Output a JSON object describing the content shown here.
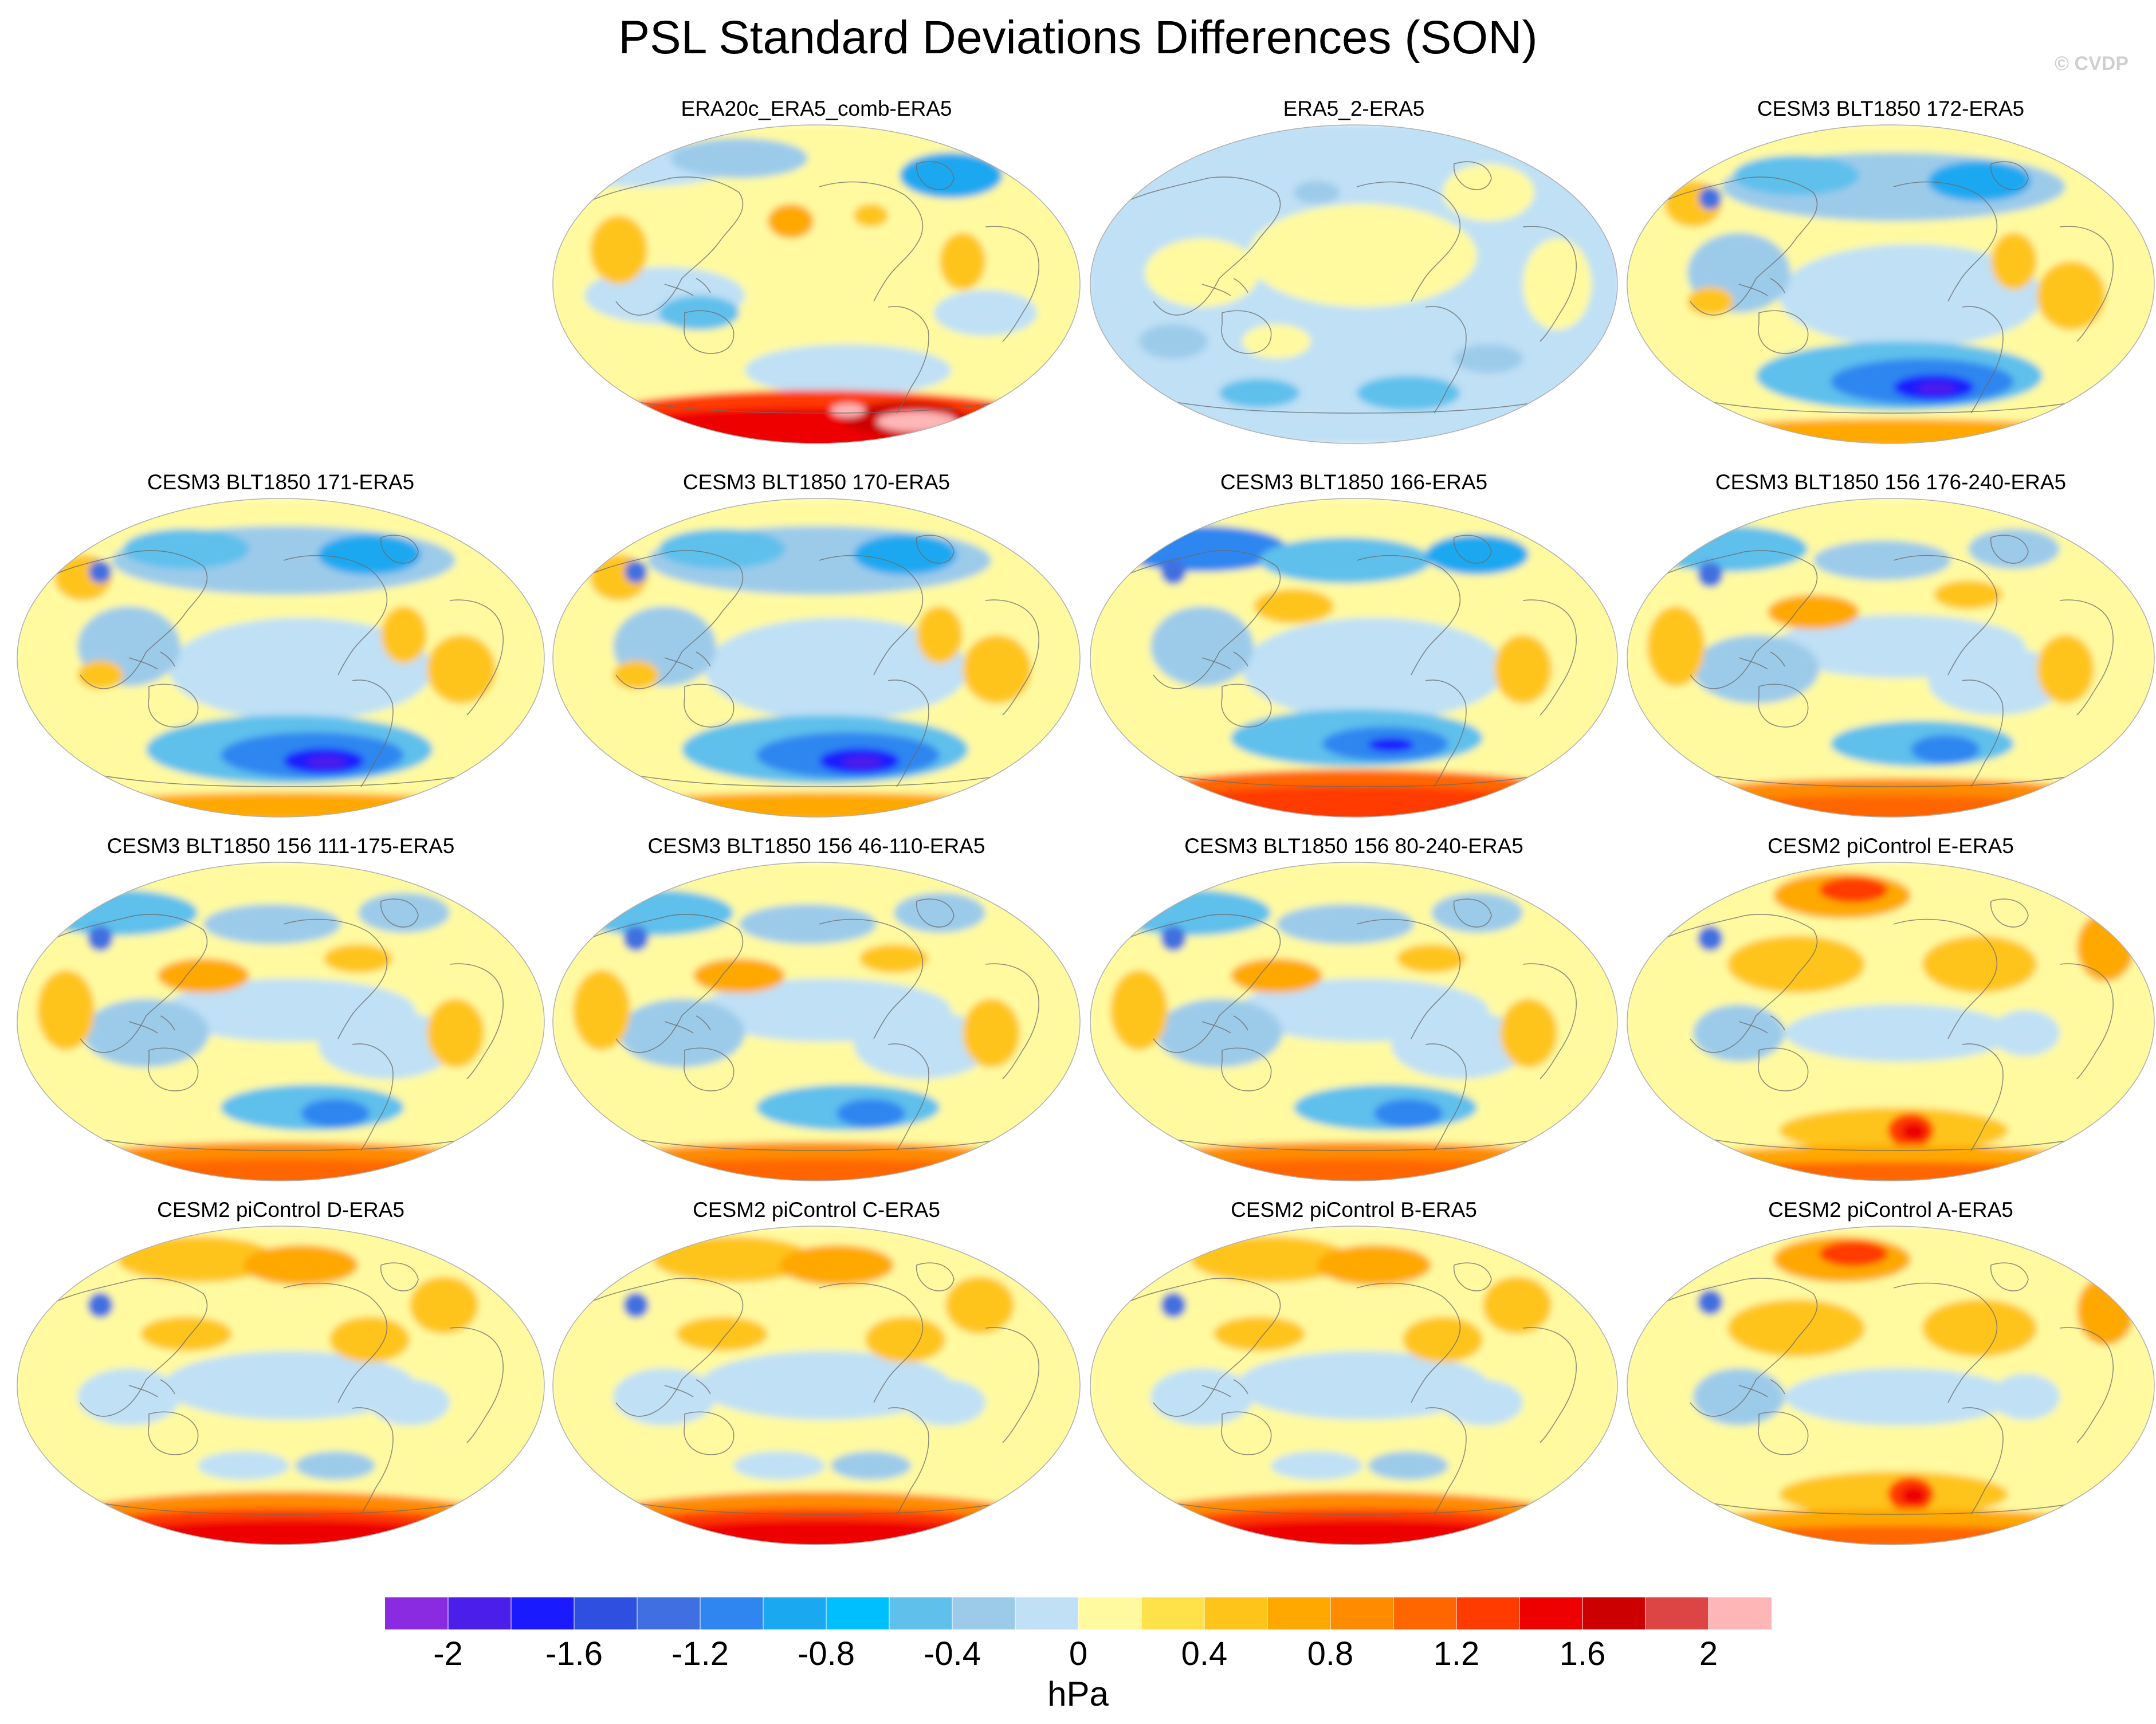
{
  "title": "PSL Standard Deviations Differences (SON)",
  "watermark": "© CVDP",
  "panels": [
    {
      "title": "ERA20c_ERA5_comb-ERA5",
      "pattern": "era20c"
    },
    {
      "title": "ERA5_2-ERA5",
      "pattern": "neutral"
    },
    {
      "title": "CESM3 BLT1850 172-ERA5",
      "pattern": "blueSouth"
    },
    {
      "title": "CESM3 BLT1850 171-ERA5",
      "pattern": "blueSouth"
    },
    {
      "title": "CESM3 BLT1850 170-ERA5",
      "pattern": "blueSouth"
    },
    {
      "title": "CESM3 BLT1850 166-ERA5",
      "pattern": "blueRedRim"
    },
    {
      "title": "CESM3 BLT1850 156 176-240-ERA5",
      "pattern": "mixed"
    },
    {
      "title": "CESM3 BLT1850 156 111-175-ERA5",
      "pattern": "mixed"
    },
    {
      "title": "CESM3 BLT1850 156 46-110-ERA5",
      "pattern": "mixed"
    },
    {
      "title": "CESM3 BLT1850 156 80-240-ERA5",
      "pattern": "mixed"
    },
    {
      "title": "CESM2 piControl E-ERA5",
      "pattern": "warm"
    },
    {
      "title": "CESM2 piControl D-ERA5",
      "pattern": "warmRim"
    },
    {
      "title": "CESM2 piControl C-ERA5",
      "pattern": "warmRim"
    },
    {
      "title": "CESM2 piControl B-ERA5",
      "pattern": "warmRim"
    },
    {
      "title": "CESM2 piControl A-ERA5",
      "pattern": "warm"
    }
  ],
  "colorbar": {
    "units": "hPa",
    "colors": [
      "#8a2be2",
      "#4b1eea",
      "#1a1aff",
      "#2f4fe0",
      "#3f6fe0",
      "#2f86f0",
      "#1aa8f0",
      "#00bfff",
      "#5fc0ec",
      "#9ccbea",
      "#bfe0f5",
      "#fffaa0",
      "#ffe14a",
      "#ffc41a",
      "#ffa800",
      "#ff8c00",
      "#ff6600",
      "#ff3b00",
      "#ee0000",
      "#cc0000",
      "#dd4444",
      "#ffb6b6"
    ],
    "tick_labels": [
      "-2",
      "-1.6",
      "-1.2",
      "-0.8",
      "-0.4",
      "0",
      "0.4",
      "0.8",
      "1.2",
      "1.6",
      "2"
    ]
  }
}
